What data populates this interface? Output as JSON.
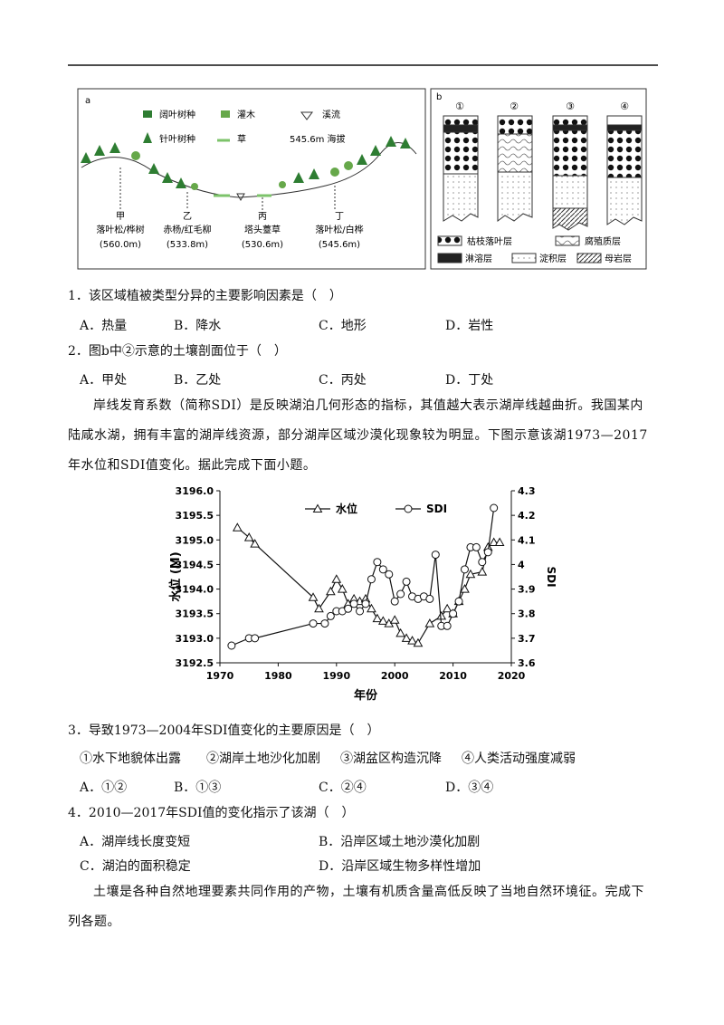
{
  "figure_a": {
    "label": "a",
    "legend": [
      "阔叶树种",
      "灌木",
      "溪流",
      "针叶树种",
      "草",
      "545.6m 海拔"
    ],
    "points": [
      {
        "name": "甲",
        "vegetation": "落叶松/桦树",
        "elevation": "(560.0m)"
      },
      {
        "name": "乙",
        "vegetation": "赤杨/红毛柳",
        "elevation": "(533.8m)"
      },
      {
        "name": "丙",
        "vegetation": "塔头薹草",
        "elevation": "(530.6m)"
      },
      {
        "name": "丁",
        "vegetation": "落叶松/白桦",
        "elevation": "(545.6m)"
      }
    ]
  },
  "figure_b": {
    "label": "b",
    "profiles": [
      "①",
      "②",
      "③",
      "④"
    ],
    "legend": [
      "枯枝落叶层",
      "腐殖质层",
      "淋溶层",
      "淀积层",
      "母岩层"
    ]
  },
  "questions": [
    {
      "stem": "1．该区域植被类型分异的主要影响因素是（　）",
      "options": [
        "A．热量",
        "B．降水",
        "C．地形",
        "D．岩性"
      ]
    },
    {
      "stem": "2．图b中②示意的土壤剖面位于（　）",
      "options": [
        "A．甲处",
        "B．乙处",
        "C．丙处",
        "D．丁处"
      ]
    },
    {
      "stem": "3．导致1973—2004年SDI值变化的主要原因是（　）",
      "statements": [
        "①水下地貌体出露",
        "②湖岸土地沙化加剧",
        "③湖盆区构造沉降",
        "④人类活动强度减弱"
      ],
      "options": [
        "A．①②",
        "B．①③",
        "C．②④",
        "D．③④"
      ]
    },
    {
      "stem": "4．2010—2017年SDI值的变化指示了该湖（　）",
      "options": [
        "A．湖岸线长度变短",
        "B．沿岸区域土地沙漠化加剧",
        "C．湖泊的面积稳定",
        "D．沿岸区域生物多样性增加"
      ]
    }
  ],
  "passages": [
    "岸线发育系数（简称SDI）是反映湖泊几何形态的指标，其值越大表示湖岸线越曲折。我国某内陆咸水湖，拥有丰富的湖岸线资源，部分湖岸区域沙漠化现象较为明显。下图示意该湖1973—2017年水位和SDI值变化。据此完成下面小题。",
    "土壤是各种自然地理要素共同作用的产物，土壤有机质含量高低反映了当地自然环境征。完成下列各题。"
  ],
  "chart_data": {
    "type": "line",
    "x_label": "年份",
    "y_label": "水位 (M)",
    "y2_label": "SDI",
    "xlim": [
      1970,
      2020
    ],
    "xticks": [
      1970,
      1980,
      1990,
      2000,
      2010,
      2020
    ],
    "ylim": [
      3192.5,
      3196
    ],
    "yticks": [
      {
        "value": 3196,
        "label": "3196.0"
      },
      {
        "value": 3195.5,
        "label": "3195.5"
      },
      {
        "value": 3195,
        "label": "3195.0"
      },
      {
        "value": 3194.5,
        "label": "3194.5"
      },
      {
        "value": 3194,
        "label": "3194.0"
      },
      {
        "value": 3193.5,
        "label": "3193.5"
      },
      {
        "value": 3193,
        "label": "3193.0"
      },
      {
        "value": 3192.5,
        "label": "3192.5"
      }
    ],
    "y2lim": [
      3.6,
      4.3
    ],
    "y2ticks": [
      4.3,
      4.2,
      4.1,
      4,
      3.9,
      3.8,
      3.7,
      3.6
    ],
    "series": [
      {
        "name": "水位",
        "color": "#111111",
        "marker": "triangle",
        "x": [
          1973,
          1975,
          1976,
          1986,
          1987,
          1989,
          1990,
          1991,
          1992,
          1993,
          1994,
          1995,
          1996,
          1997,
          1998,
          1999,
          2000,
          2001,
          2002,
          2003,
          2004,
          2006,
          2008,
          2009,
          2010,
          2011,
          2012,
          2013,
          2015,
          2016,
          2017,
          2018
        ],
        "values": [
          3195.25,
          3195.05,
          3194.92,
          3193.83,
          3193.6,
          3193.95,
          3194.2,
          3194.0,
          3193.7,
          3193.8,
          3193.75,
          3193.8,
          3193.6,
          3193.4,
          3193.35,
          3193.3,
          3193.37,
          3193.1,
          3193.0,
          3192.95,
          3192.9,
          3193.3,
          3193.45,
          3193.6,
          3193.5,
          3193.75,
          3194.0,
          3194.3,
          3194.35,
          3194.85,
          3194.95,
          3194.95
        ]
      },
      {
        "name": "SDI",
        "color": "#111111",
        "marker": "circle",
        "axis": "y2",
        "x": [
          1972,
          1975,
          1976,
          1986,
          1988,
          1989,
          1990,
          1991,
          1992,
          1993,
          1994,
          1995,
          1996,
          1997,
          1998,
          1999,
          2000,
          2001,
          2002,
          2003,
          2004,
          2005,
          2006,
          2007,
          2008,
          2009,
          2010,
          2011,
          2012,
          2013,
          2014,
          2015,
          2016,
          2017
        ],
        "values": [
          3.67,
          3.7,
          3.7,
          3.76,
          3.76,
          3.79,
          3.81,
          3.81,
          3.82,
          3.84,
          3.81,
          3.84,
          3.94,
          4.01,
          3.98,
          3.96,
          3.85,
          3.88,
          3.93,
          3.87,
          3.86,
          3.87,
          3.86,
          4.04,
          3.75,
          3.75,
          3.8,
          3.85,
          3.98,
          4.07,
          4.07,
          4.01,
          4.05,
          4.23
        ]
      }
    ]
  }
}
